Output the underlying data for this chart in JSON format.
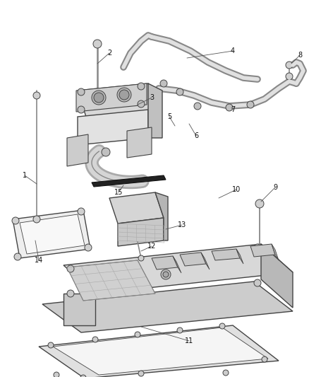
{
  "background_color": "#ffffff",
  "line_color": "#444444",
  "fill_light": "#e8e8e8",
  "fill_mid": "#d0d0d0",
  "fill_dark": "#b8b8b8",
  "label_fontsize": 7.0
}
